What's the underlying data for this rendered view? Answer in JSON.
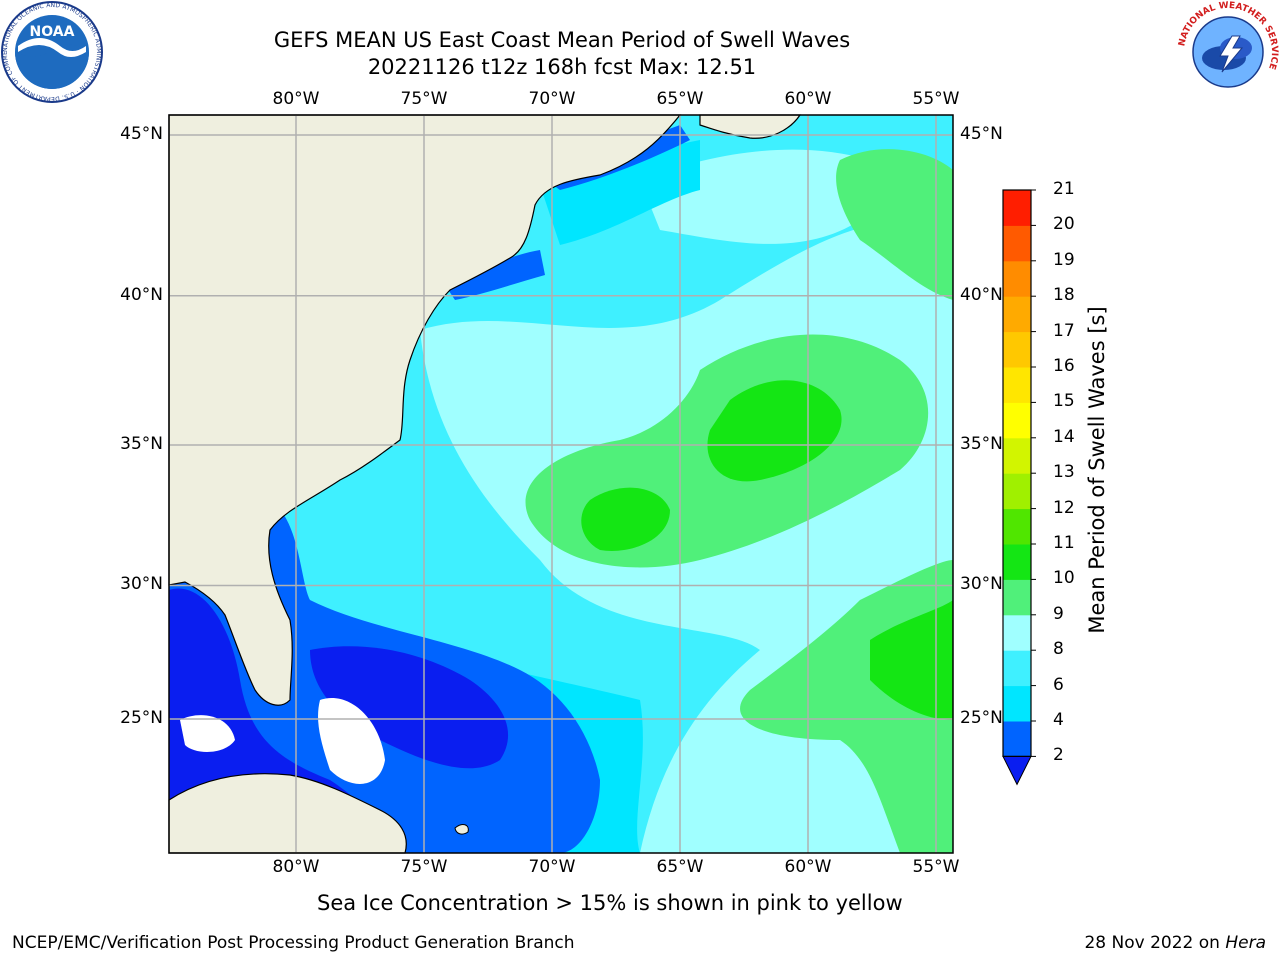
{
  "header": {
    "title_line1": "GEFS MEAN US East Coast Mean Period of Swell Waves",
    "title_line2": "20221126 t12z 168h fcst   Max: 12.51"
  },
  "logos": {
    "noaa_text": "NOAA",
    "noaa_ring_text": "NATIONAL OCEANIC AND ATMOSPHERIC ADMINISTRATION · U.S. DEPARTMENT OF COMMERCE",
    "nws_ring_text": "NATIONAL WEATHER SERVICE"
  },
  "map": {
    "lon_ticks": [
      "80°W",
      "75°W",
      "70°W",
      "65°W",
      "60°W",
      "55°W"
    ],
    "lat_ticks_left": [
      "45°N",
      "40°N",
      "35°N",
      "30°N",
      "25°N"
    ],
    "lat_ticks_right": [
      "45°N",
      "40°N",
      "35°N",
      "30°N",
      "25°N"
    ],
    "extent": {
      "lon_min": -84.5,
      "lon_max": -54.7,
      "lat_min": 20.5,
      "lat_max": 45.8
    },
    "grid": true,
    "colors": {
      "land": "#efefdf",
      "grid": "#b0b0b0",
      "coast": "#000000"
    }
  },
  "colorbar": {
    "label": "Mean Period of Swell Waves [s]",
    "ticks": [
      "2",
      "4",
      "6",
      "8",
      "9",
      "10",
      "11",
      "12",
      "13",
      "14",
      "15",
      "16",
      "17",
      "18",
      "19",
      "20",
      "21"
    ],
    "colors": [
      "#0064ff",
      "#00e6ff",
      "#3ff0ff",
      "#a0ffff",
      "#50f07a",
      "#14e614",
      "#50e600",
      "#a0f000",
      "#d2f500",
      "#ffff00",
      "#ffe600",
      "#ffc800",
      "#ffaa00",
      "#ff8c00",
      "#ff5a00",
      "#ff1e00"
    ],
    "under_color": "#0a1ef0"
  },
  "notes": {
    "sea_ice": "Sea Ice Concentration > 15% is shown in pink to yellow"
  },
  "footer": {
    "left": "NCEP/EMC/Verification Post Processing Product Generation Branch",
    "right_date": "28 Nov 2022 on ",
    "right_machine": "Hera"
  }
}
